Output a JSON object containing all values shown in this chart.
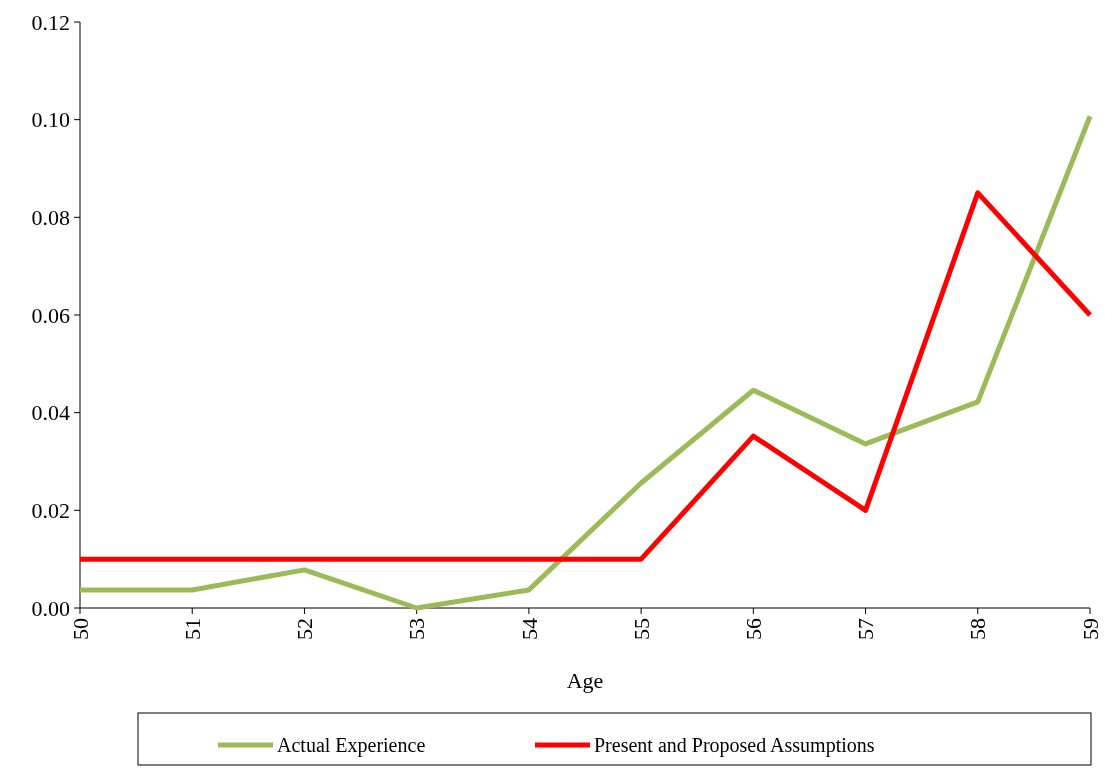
{
  "chart_data": {
    "type": "line",
    "xlabel": "Age",
    "categories": [
      "50",
      "51",
      "52",
      "53",
      "54",
      "55",
      "56",
      "57",
      "58",
      "59"
    ],
    "series": [
      {
        "name": "Actual Experience",
        "color": "#9bbb59",
        "values": [
          0.0037,
          0.0037,
          0.0078,
          0,
          0.0037,
          0.0256,
          0.0446,
          0.0336,
          0.0422,
          0.1007
        ]
      },
      {
        "name": "Present and Proposed Assumptions",
        "color": "#ff0000",
        "values": [
          0.01,
          0.01,
          0.01,
          0.01,
          0.01,
          0.01,
          0.0352,
          0.02,
          0.085,
          0.06
        ]
      }
    ],
    "ylim": [
      0,
      0.12
    ],
    "yticks": [
      {
        "value": 0,
        "label": "0.00"
      },
      {
        "value": 0.02,
        "label": "0.02"
      },
      {
        "value": 0.04,
        "label": "0.04"
      },
      {
        "value": 0.06,
        "label": "0.06"
      },
      {
        "value": 0.08,
        "label": "0.08"
      },
      {
        "value": 0.1,
        "label": "0.10"
      },
      {
        "value": 0.12,
        "label": "0.12"
      }
    ],
    "grid": false,
    "legend": "bottom",
    "marker": "none",
    "line_style": "solid"
  }
}
